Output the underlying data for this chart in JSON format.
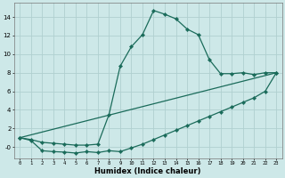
{
  "xlabel": "Humidex (Indice chaleur)",
  "ylabel": "",
  "bg_color": "#cde8e8",
  "grid_color": "#b0d0d0",
  "line_color": "#1a6b5a",
  "xlim": [
    -0.5,
    23.5
  ],
  "ylim": [
    -1.2,
    15.5
  ],
  "yticks_vals": [
    0,
    2,
    4,
    6,
    8,
    10,
    12,
    14
  ],
  "ytick_labels": [
    "-0",
    "2",
    "4",
    "6",
    "8",
    "10",
    "12",
    "14"
  ],
  "xticks": [
    0,
    1,
    2,
    3,
    4,
    5,
    6,
    7,
    8,
    9,
    10,
    11,
    12,
    13,
    14,
    15,
    16,
    17,
    18,
    19,
    20,
    21,
    22,
    23
  ],
  "line1_x": [
    0,
    1,
    2,
    3,
    4,
    5,
    6,
    7,
    8,
    9,
    10,
    11,
    12,
    13,
    14,
    15,
    16,
    17,
    18,
    19,
    20,
    21,
    22,
    23
  ],
  "line1_y": [
    1.0,
    0.8,
    0.5,
    0.4,
    0.3,
    0.2,
    0.2,
    0.3,
    3.5,
    8.7,
    10.8,
    12.1,
    14.7,
    14.3,
    13.8,
    12.7,
    12.1,
    9.4,
    7.9,
    7.9,
    8.0,
    7.8,
    8.0,
    8.0
  ],
  "line2_x": [
    0,
    23
  ],
  "line2_y": [
    1.0,
    8.0
  ],
  "line3_x": [
    0,
    1,
    2,
    3,
    4,
    5,
    6,
    7,
    8,
    9,
    10,
    11,
    12,
    13,
    14,
    15,
    16,
    17,
    18,
    19,
    20,
    21,
    22,
    23
  ],
  "line3_y": [
    1.0,
    0.7,
    -0.4,
    -0.5,
    -0.55,
    -0.65,
    -0.5,
    -0.6,
    -0.4,
    -0.5,
    -0.1,
    0.3,
    0.8,
    1.3,
    1.8,
    2.3,
    2.8,
    3.3,
    3.8,
    4.3,
    4.8,
    5.3,
    6.0,
    8.0
  ],
  "figwidth": 3.2,
  "figheight": 2.0,
  "dpi": 100
}
